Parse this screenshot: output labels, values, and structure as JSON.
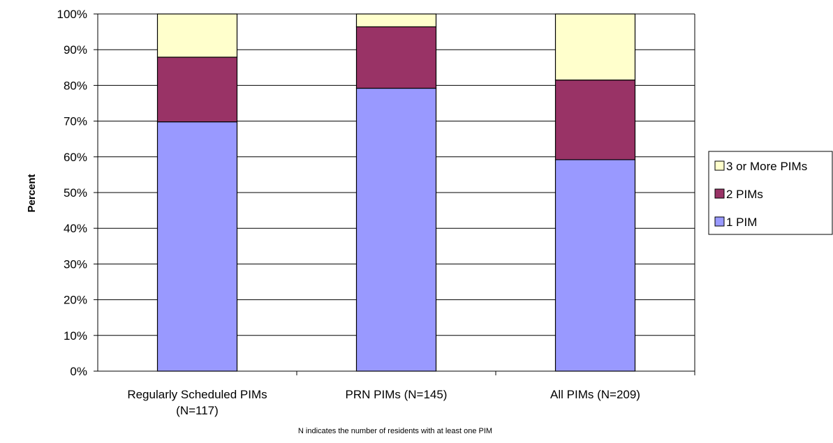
{
  "chart_data": {
    "type": "bar",
    "stacked": true,
    "percent": true,
    "title": "",
    "xlabel": "",
    "ylabel": "Percent",
    "ylim": [
      0,
      100
    ],
    "yticks": [
      "0%",
      "10%",
      "20%",
      "30%",
      "40%",
      "50%",
      "60%",
      "70%",
      "80%",
      "90%",
      "100%"
    ],
    "categories": [
      [
        "Regularly Scheduled PIMs",
        "(N=117)"
      ],
      [
        "PRN PIMs (N=145)"
      ],
      [
        "All PIMs (N=209)"
      ]
    ],
    "series": [
      {
        "name": "1 PIM",
        "values": [
          69.8,
          79.2,
          59.2
        ],
        "color": "#9999ff"
      },
      {
        "name": "2 PIMs",
        "values": [
          18.1,
          17.2,
          22.3
        ],
        "color": "#993366"
      },
      {
        "name": "3 or More PIMs",
        "values": [
          12.1,
          3.6,
          18.5
        ],
        "color": "#ffffcc"
      }
    ],
    "legend_position": "right",
    "gridlines": true,
    "footnote": "N indicates the number of residents with at least one PIM"
  }
}
